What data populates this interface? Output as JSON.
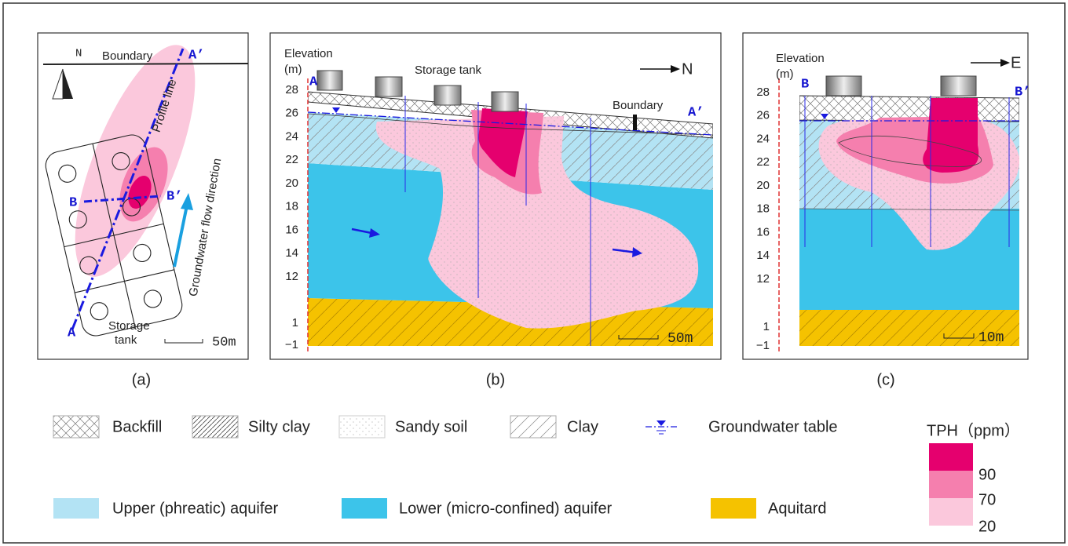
{
  "panel_a": {
    "north": "N",
    "boundary": "Boundary",
    "a_prime": "A’",
    "profile_line": "Profile line",
    "b": "B",
    "b_prime": "B’",
    "flow": "Groundwater flow direction",
    "a": "A",
    "storage": "Storage",
    "tank": "tank",
    "scale": "50m",
    "caption": "(a)"
  },
  "panel_b": {
    "elevation": "Elevation",
    "unit": "(m)",
    "ticks": [
      "28",
      "26",
      "24",
      "22",
      "20",
      "18",
      "16",
      "14",
      "12",
      "1",
      "−1"
    ],
    "a": "A",
    "storage_tank": "Storage tank",
    "direction": "N",
    "boundary": "Boundary",
    "a_prime": "A’",
    "scale": "50m",
    "caption": "(b)"
  },
  "panel_c": {
    "elevation": "Elevation",
    "unit": "(m)",
    "ticks": [
      "28",
      "26",
      "24",
      "22",
      "20",
      "18",
      "16",
      "14",
      "12",
      "1",
      "−1"
    ],
    "b": "B",
    "b_prime": "B’",
    "direction": "E",
    "scale": "10m",
    "caption": "(c)"
  },
  "legend": {
    "items": [
      "Backfill",
      "Silty clay",
      "Sandy soil",
      "Clay",
      "Groundwater table",
      "Upper (phreatic) aquifer",
      "Lower (micro-confined) aquifer",
      "Aquitard"
    ],
    "tph_title": "TPH（ppm）",
    "tph_levels": [
      "90",
      "70",
      "20"
    ]
  }
}
